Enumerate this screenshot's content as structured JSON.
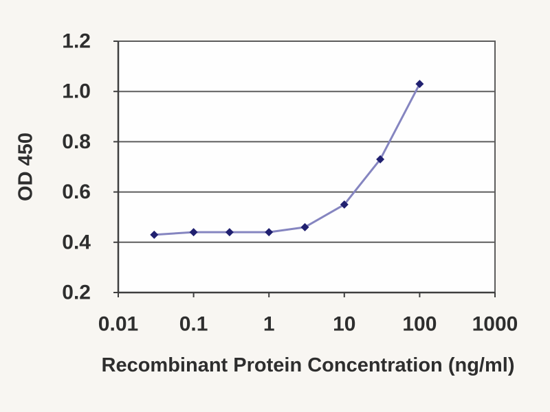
{
  "chart_data": {
    "type": "line",
    "title": "",
    "xlabel": "Recombinant Protein Concentration (ng/ml)",
    "ylabel": "OD 450",
    "x_scale": "log",
    "xlim": [
      0.01,
      1000
    ],
    "ylim": [
      0.2,
      1.2
    ],
    "x_ticks": [
      0.01,
      0.1,
      1,
      10,
      100,
      1000
    ],
    "x_tick_labels": [
      "0.01",
      "0.1",
      "1",
      "10",
      "100",
      "1000"
    ],
    "y_ticks": [
      0.2,
      0.4,
      0.6,
      0.8,
      1.0,
      1.2
    ],
    "y_tick_labels": [
      "0.2",
      "0.4",
      "0.6",
      "0.8",
      "1.0",
      "1.2"
    ],
    "grid": "horizontal-only",
    "legend": "none",
    "series": [
      {
        "name": "OD 450",
        "x": [
          0.03,
          0.1,
          0.3,
          1,
          3,
          10,
          30,
          100
        ],
        "y": [
          0.43,
          0.44,
          0.44,
          0.44,
          0.46,
          0.55,
          0.73,
          1.03
        ],
        "color": "#8585c0",
        "marker": "diamond",
        "marker_color": "#202070"
      }
    ],
    "colors": {
      "background": "#f8f6f2",
      "plot_background": "#fefefe",
      "grid_color": "#5c5c5c",
      "axis_color": "#3e3e3e",
      "tick_label_color": "#2e2e2e"
    }
  }
}
